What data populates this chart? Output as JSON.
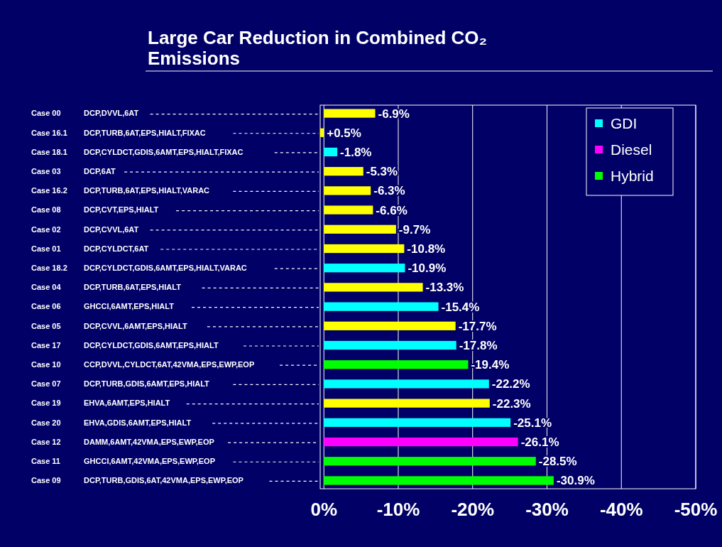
{
  "chart_data": {
    "type": "bar",
    "orientation": "horizontal",
    "stacked": true,
    "title": "Large Car Reduction in Combined CO₂ Emissions",
    "categories": [
      "Case 00 DCP,DVVL,6AT",
      "Case 16.1 DCP,TURB,6AT,EPS,HIALT,FIXAC",
      "Case 18.1 DCP,CYLDCT,GDIS,6AMT,EPS,HIALT,FIXAC",
      "Case 03 DCP,6AT",
      "Case 16.2 DCP,TURB,6AT,EPS,HIALT,VARAC",
      "Case 08 DCP,CVT,EPS,HIALT",
      "Case 02 DCP,CVVL,6AT",
      "Case 01 DCP,CYLDCT,6AT",
      "Case 18.2 DCP,CYLDCT,GDIS,6AMT,EPS,HIALT,VARAC",
      "Case 04 DCP,TURB,6AT,EPS,HIALT",
      "Case 06 GHCCI,6AMT,EPS,HIALT",
      "Case 05 DCP,CVVL,6AMT,EPS,HIALT",
      "Case 17 DCP,CYLDCT,GDIS,6AMT,EPS,HIALT",
      "Case 10 CCP,DVVL,CYLDCT,6AT,42VMA,EPS,EWP,EOP",
      "Case 07 DCP,TURB,GDIS,6AMT,EPS,HIALT",
      "Case 19 EHVA,6AMT,EPS,HIALT",
      "Case 20 EHVA,GDIS,6AMT,EPS,HIALT",
      "Case 12 DAMM,6AMT,42VMA,EPS,EWP,EOP",
      "Case 11 GHCCI,6AMT,42VMA,EPS,EWP,EOP",
      "Case 09 DCP,TURB,GDIS,6AT,42VMA,EPS,EWP,EOP"
    ],
    "series": [
      {
        "color": "#ffff00",
        "values": [
          -6.9,
          0.5,
          null,
          -5.3,
          -6.3,
          -6.6,
          -9.7,
          -10.8,
          null,
          -13.3,
          null,
          -17.7,
          null,
          null,
          null,
          -22.3,
          null,
          null,
          null,
          null
        ],
        "value_labels": [
          "-6.9%",
          "+0.5%",
          null,
          "-5.3%",
          "-6.3%",
          "-6.6%",
          "-9.7%",
          "-10.8%",
          null,
          "-13.3%",
          null,
          "-17.7%",
          null,
          null,
          null,
          "-22.3%",
          null,
          null,
          null,
          null
        ]
      },
      {
        "name": "GDI",
        "color": "#00ffff",
        "values": [
          null,
          null,
          -1.8,
          null,
          null,
          null,
          null,
          null,
          -10.9,
          null,
          -15.4,
          null,
          -17.8,
          null,
          -22.2,
          null,
          -25.1,
          null,
          null,
          null
        ],
        "value_labels": [
          null,
          null,
          "-1.8%",
          null,
          null,
          null,
          null,
          null,
          "-10.9%",
          null,
          "-15.4%",
          null,
          "-17.8%",
          null,
          "-22.2%",
          null,
          "-25.1%",
          null,
          null,
          null
        ]
      },
      {
        "name": "Diesel",
        "color": "#ff00ff",
        "values": [
          null,
          null,
          null,
          null,
          null,
          null,
          null,
          null,
          null,
          null,
          null,
          null,
          null,
          null,
          null,
          null,
          null,
          -26.1,
          null,
          null
        ],
        "value_labels": [
          null,
          null,
          null,
          null,
          null,
          null,
          null,
          null,
          null,
          null,
          null,
          null,
          null,
          null,
          null,
          null,
          null,
          "-26.1%",
          null,
          null
        ]
      },
      {
        "name": "Hybrid",
        "color": "#00ff00",
        "values": [
          null,
          null,
          null,
          null,
          null,
          null,
          null,
          null,
          null,
          null,
          null,
          null,
          null,
          -19.4,
          null,
          null,
          null,
          null,
          -28.5,
          -30.9
        ],
        "value_labels": [
          null,
          null,
          null,
          null,
          null,
          null,
          null,
          null,
          null,
          null,
          null,
          null,
          null,
          "-19.4%",
          null,
          null,
          null,
          null,
          "-28.5%",
          "-30.9%"
        ]
      }
    ],
    "xlim": [
      0.5,
      -50
    ],
    "xticks": [
      {
        "value": 0,
        "label": "0%"
      },
      {
        "value": -10,
        "label": "-10%"
      },
      {
        "value": -20,
        "label": "-20%"
      },
      {
        "value": -30,
        "label": "-30%"
      },
      {
        "value": -40,
        "label": "-40%"
      },
      {
        "value": -50,
        "label": "-50%"
      }
    ],
    "grid": "x",
    "legend": "top right"
  }
}
